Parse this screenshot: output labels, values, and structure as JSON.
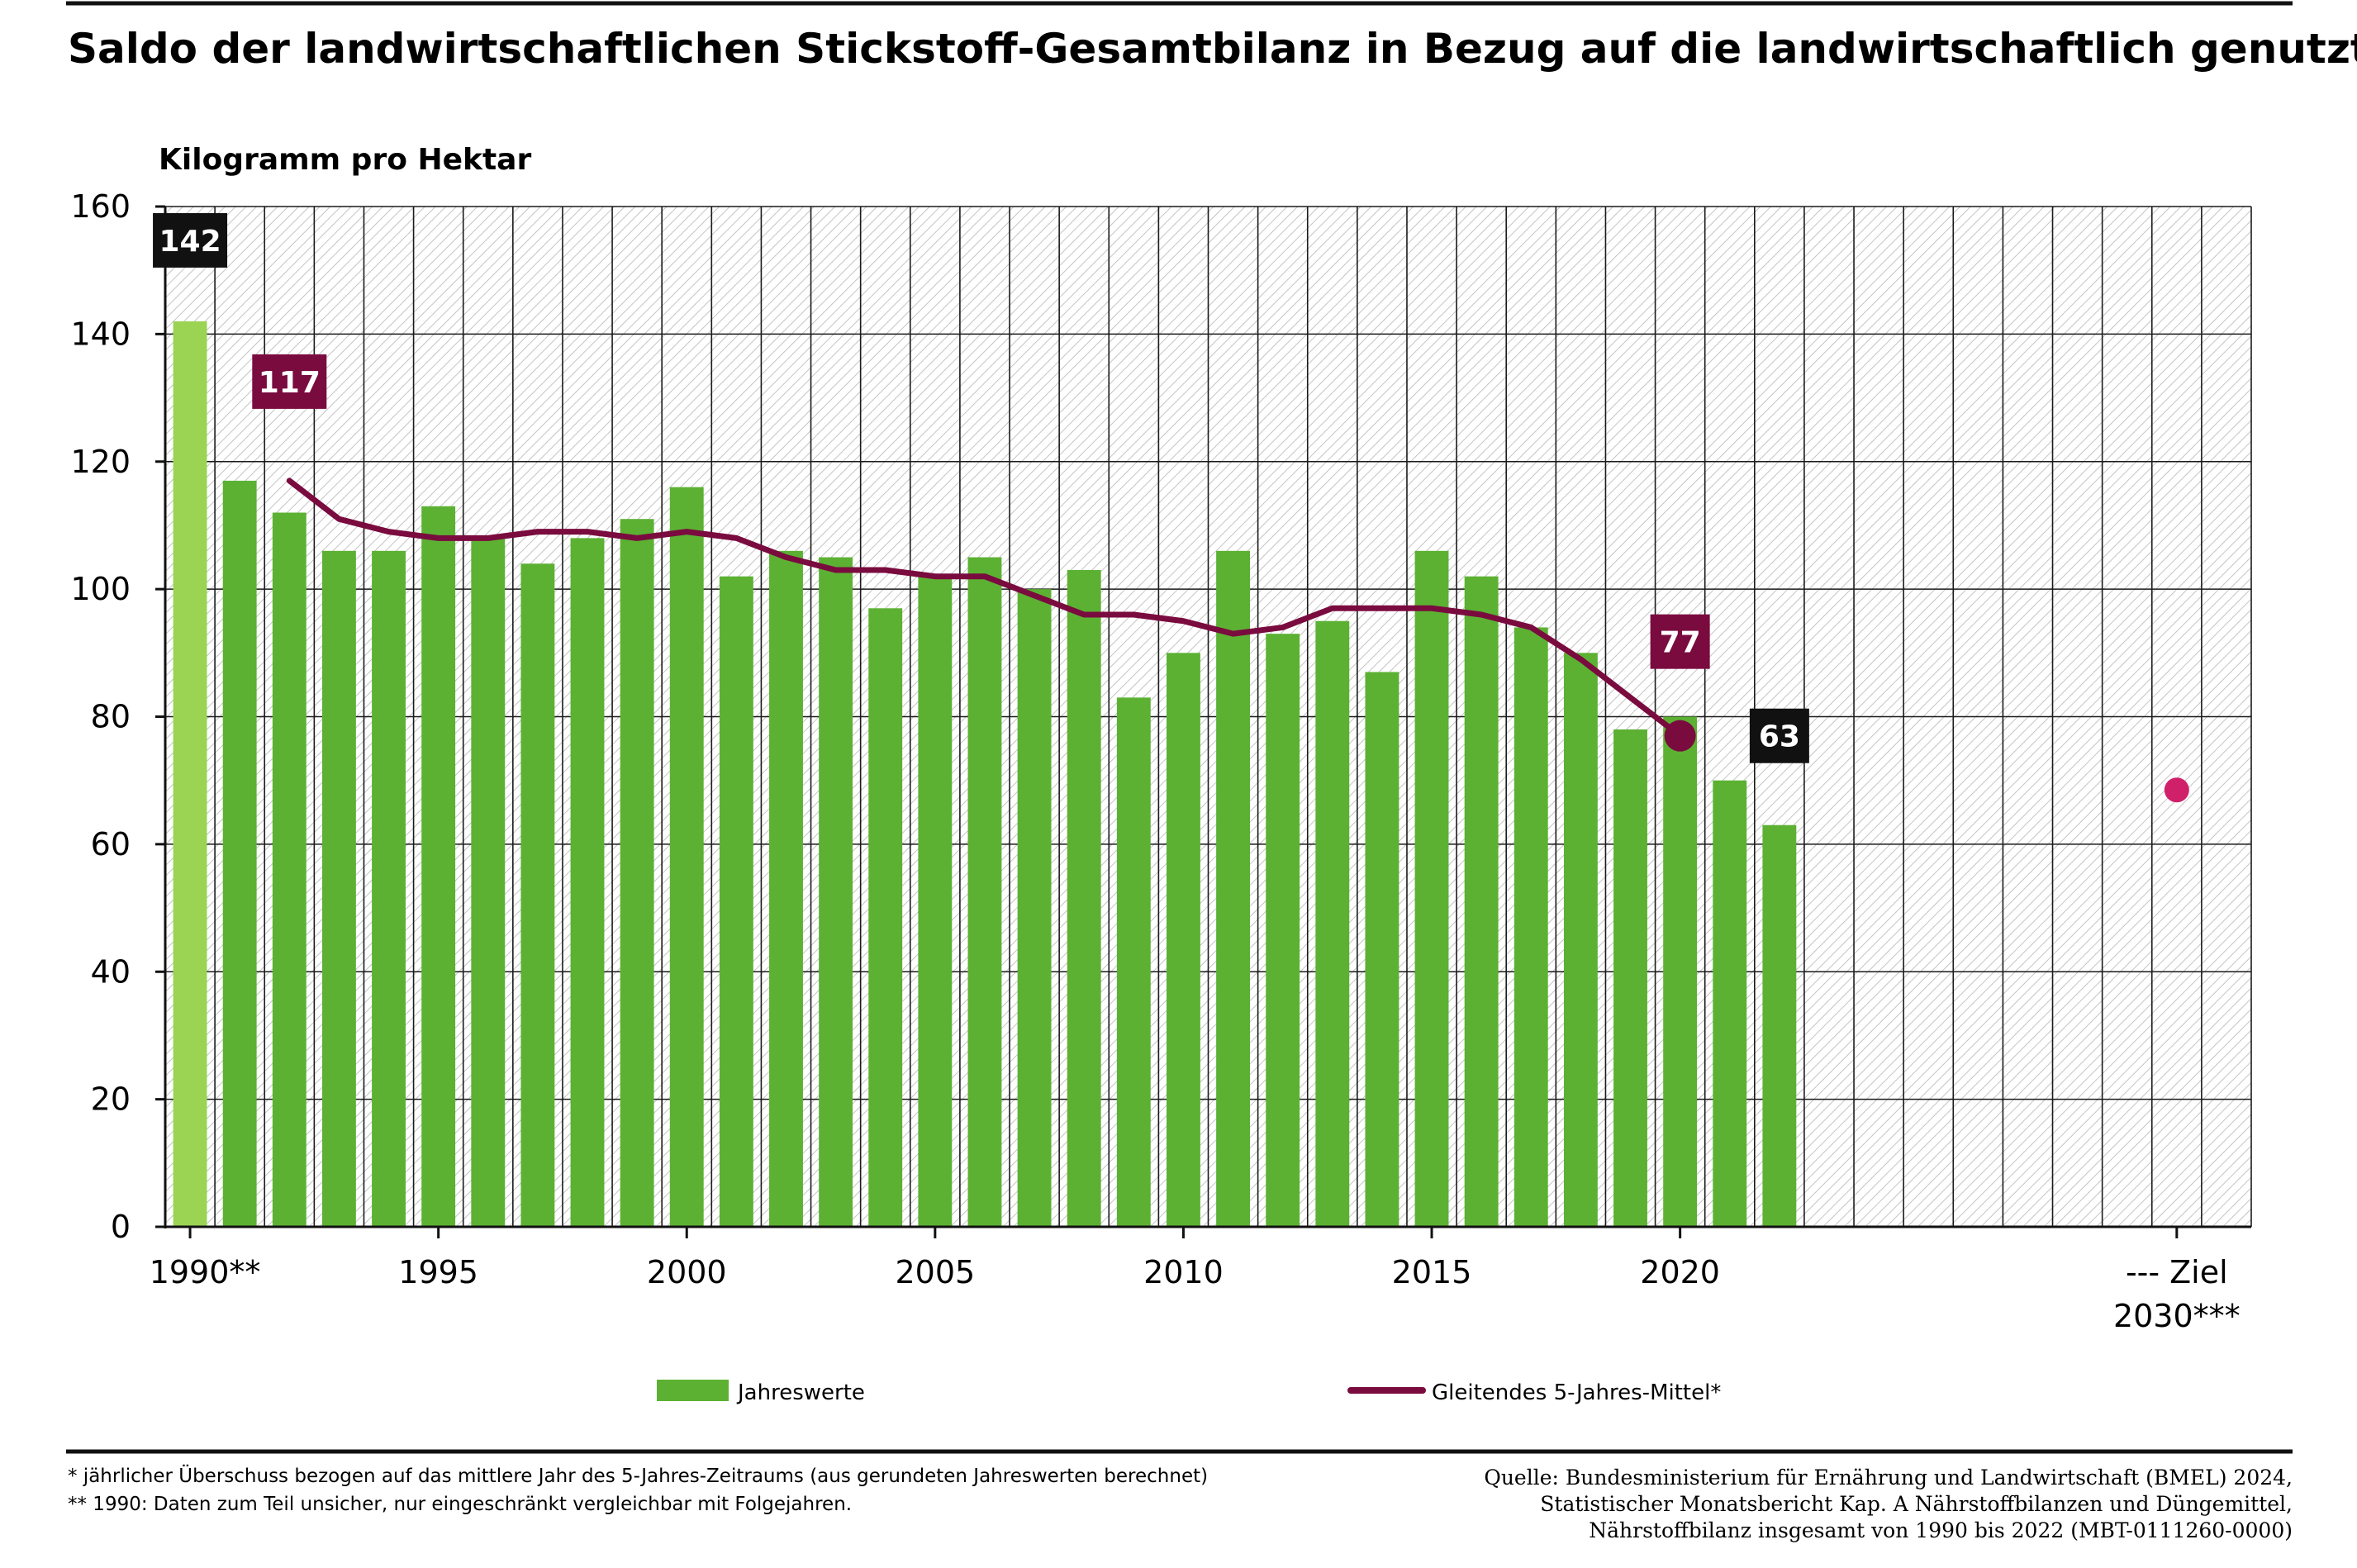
{
  "title": "Saldo der landwirtschaftlichen Stickstoff-Gesamtbilanz in Bezug auf die landwirtschaftlich genutzte Fläche",
  "colors": {
    "bar": "#5cb133",
    "bar_1990": "#9ad452",
    "line": "#7a0b3f",
    "target": "#d0206a",
    "label_dark": "#111111",
    "grid": "#1a1a1a",
    "hatch": "#bdbdbd"
  },
  "chart_data": {
    "type": "bar",
    "ylabel": "Kilogramm pro Hektar",
    "ylim": [
      0,
      160
    ],
    "yticks": [
      "0",
      "20",
      "40",
      "60",
      "80",
      "100",
      "120",
      "140",
      "160"
    ],
    "xticks": [
      {
        "year": 1990,
        "label": "1990**"
      },
      {
        "year": 1995,
        "label": "1995"
      },
      {
        "year": 2000,
        "label": "2000"
      },
      {
        "year": 2005,
        "label": "2005"
      },
      {
        "year": 2010,
        "label": "2010"
      },
      {
        "year": 2015,
        "label": "2015"
      },
      {
        "year": 2020,
        "label": "2020"
      }
    ],
    "target_label_line1": "--- Ziel",
    "target_label_line2": "2030***",
    "grid": true,
    "series": [
      {
        "name": "Jahreswerte",
        "type": "bar",
        "x": [
          1990,
          1991,
          1992,
          1993,
          1994,
          1995,
          1996,
          1997,
          1998,
          1999,
          2000,
          2001,
          2002,
          2003,
          2004,
          2005,
          2006,
          2007,
          2008,
          2009,
          2010,
          2011,
          2012,
          2013,
          2014,
          2015,
          2016,
          2017,
          2018,
          2019,
          2020,
          2021,
          2022
        ],
        "values": [
          142,
          117,
          112,
          106,
          106,
          113,
          108,
          104,
          108,
          111,
          116,
          102,
          106,
          105,
          97,
          102,
          105,
          100,
          103,
          83,
          90,
          106,
          93,
          95,
          87,
          106,
          102,
          94,
          90,
          78,
          80,
          70,
          63
        ]
      },
      {
        "name": "Gleitendes 5-Jahres-Mittel*",
        "type": "line",
        "x": [
          1992,
          1993,
          1994,
          1995,
          1996,
          1997,
          1998,
          1999,
          2000,
          2001,
          2002,
          2003,
          2004,
          2005,
          2006,
          2007,
          2008,
          2009,
          2010,
          2011,
          2012,
          2013,
          2014,
          2015,
          2016,
          2017,
          2018,
          2019,
          2020
        ],
        "values": [
          117,
          111,
          109,
          108,
          108,
          109,
          109,
          108,
          109,
          108,
          105,
          103,
          103,
          102,
          102,
          99,
          96,
          96,
          95,
          93,
          94,
          97,
          97,
          97,
          96,
          94,
          89,
          83,
          77
        ]
      },
      {
        "name": "Ziel 2030",
        "type": "scatter",
        "x": [
          2030
        ],
        "values": [
          68.5
        ]
      }
    ],
    "annotations": [
      {
        "x": 1990,
        "value": 142,
        "text": "142",
        "style": "dark"
      },
      {
        "x": 1992,
        "value": 117,
        "text": "117",
        "style": "line"
      },
      {
        "x": 2020,
        "value": 77,
        "text": "77",
        "style": "line"
      },
      {
        "x": 2022,
        "value": 63,
        "text": "63",
        "style": "dark"
      }
    ],
    "legend": [
      {
        "text": "Jahreswerte",
        "kind": "bar"
      },
      {
        "text": "Gleitendes 5-Jahres-Mittel*",
        "kind": "line"
      }
    ],
    "legend_position": "bottom"
  },
  "footnotes": [
    "* jährlicher Überschuss bezogen auf das mittlere Jahr des 5-Jahres-Zeitraums (aus gerundeten Jahreswerten berechnet)",
    "** 1990: Daten zum Teil unsicher, nur eingeschränkt vergleichbar mit Folgejahren."
  ],
  "source": [
    "Quelle: Bundesministerium für Ernährung und Landwirtschaft (BMEL) 2024,",
    "Statistischer Monatsbericht Kap. A Nährstoffbilanzen und Düngemittel,",
    "Nährstoffbilanz insgesamt von 1990 bis 2022 (MBT-0111260-0000)"
  ]
}
